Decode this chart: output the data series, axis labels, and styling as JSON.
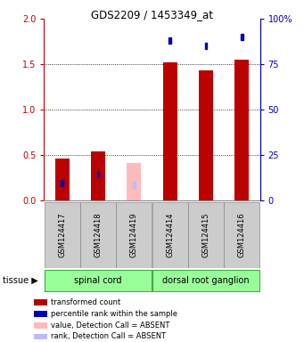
{
  "title": "GDS2209 / 1453349_at",
  "samples": [
    "GSM124417",
    "GSM124418",
    "GSM124419",
    "GSM124414",
    "GSM124415",
    "GSM124416"
  ],
  "tissue_groups": [
    {
      "label": "spinal cord"
    },
    {
      "label": "dorsal root ganglion"
    }
  ],
  "red_bars": [
    0.46,
    0.54,
    0.0,
    1.52,
    1.43,
    1.55
  ],
  "pink_bars": [
    0.0,
    0.0,
    0.41,
    0.0,
    0.0,
    0.0
  ],
  "blue_squares_y": [
    0.19,
    0.28,
    0.0,
    1.76,
    1.7,
    1.8
  ],
  "light_blue_squares_y": [
    0.0,
    0.0,
    0.17,
    0.0,
    0.0,
    0.0
  ],
  "absent_flags": [
    false,
    false,
    true,
    false,
    false,
    false
  ],
  "ylim": [
    0,
    2.0
  ],
  "yticks_left": [
    0,
    0.5,
    1.0,
    1.5,
    2.0
  ],
  "yticks_right_vals": [
    0,
    25,
    50,
    75,
    100
  ],
  "bar_color_red": "#bb0000",
  "bar_color_pink": "#ffbbbb",
  "sq_color_blue": "#0000bb",
  "sq_color_light_blue": "#bbbbff",
  "tissue_color": "#99ff99",
  "tissue_border": "#44aa44",
  "gray_box_color": "#cccccc",
  "gray_box_border": "#888888",
  "left_axis_color": "#bb0000",
  "right_axis_color": "#0000bb",
  "bar_width": 0.4,
  "sq_size": 0.065,
  "legend_items": [
    {
      "color": "#bb0000",
      "label": "transformed count"
    },
    {
      "color": "#0000bb",
      "label": "percentile rank within the sample"
    },
    {
      "color": "#ffbbbb",
      "label": "value, Detection Call = ABSENT"
    },
    {
      "color": "#bbbbff",
      "label": "rank, Detection Call = ABSENT"
    }
  ]
}
